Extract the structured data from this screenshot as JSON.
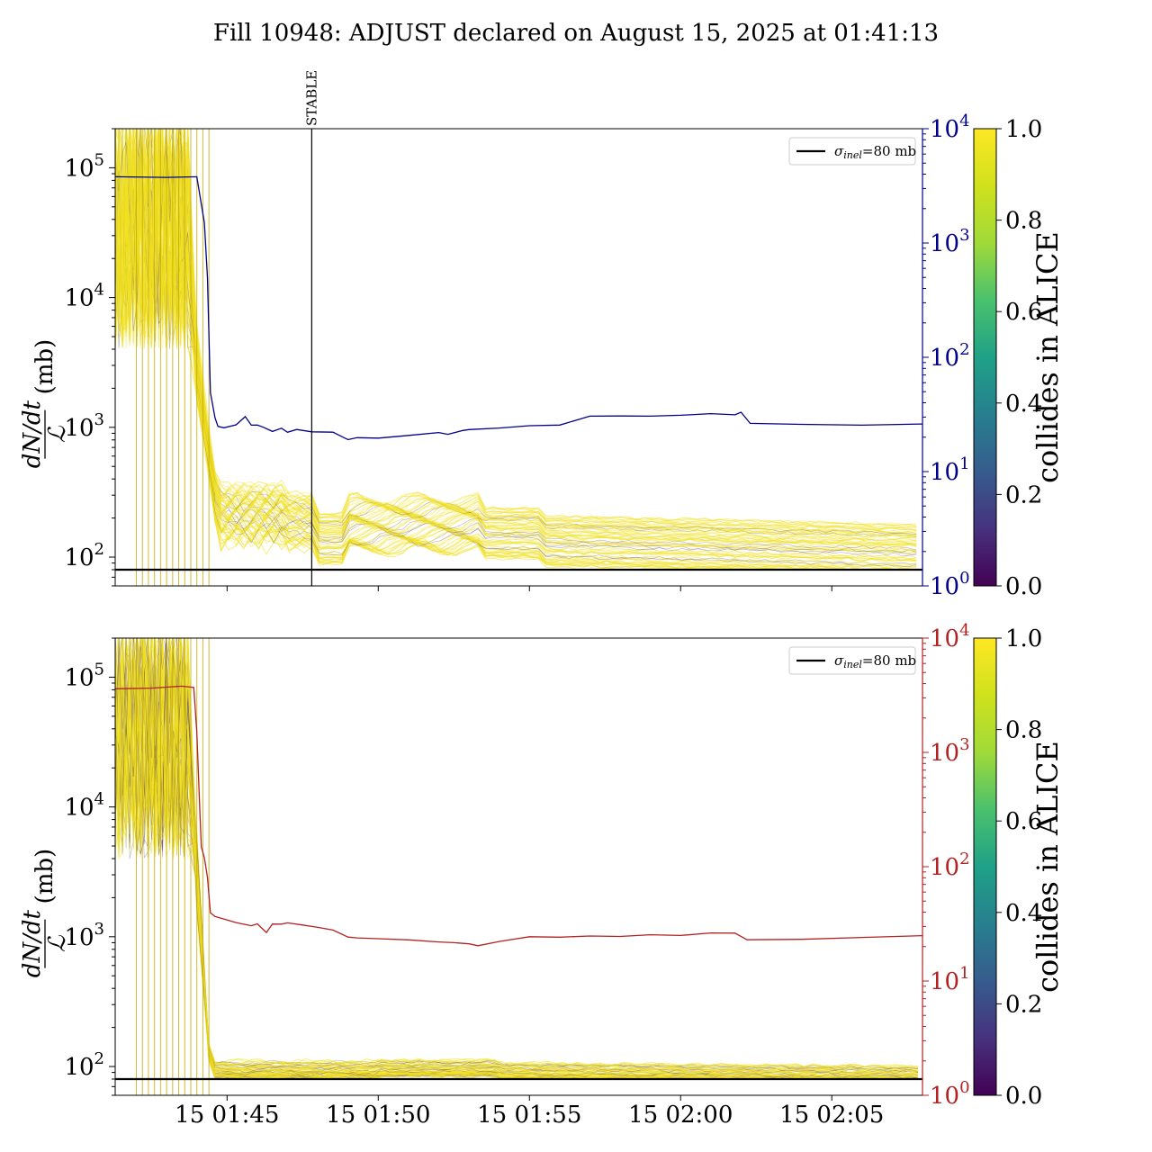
{
  "figure": {
    "title": "Fill 10948: ADJUST declared on August 15, 2025 at 01:41:13"
  },
  "colors": {
    "primary_secondary_line": "#00008b",
    "bottom_secondary_line": "#b22222",
    "reference_line": "#000000",
    "bunch_high": "#f0e020",
    "bunch_low": "#3b1f5e"
  },
  "chart_data": [
    {
      "type": "line",
      "panel": "top",
      "ylabel_numerator": "dN/dt",
      "ylabel_denominator": "ℒ",
      "ylabel_unit": "(mb)",
      "yscale": "log",
      "ylim": [
        60,
        200000
      ],
      "left_ticks": [
        {
          "base": "10",
          "exp": "2",
          "value": 100
        },
        {
          "base": "10",
          "exp": "3",
          "value": 1000
        },
        {
          "base": "10",
          "exp": "4",
          "value": 10000
        },
        {
          "base": "10",
          "exp": "5",
          "value": 100000
        }
      ],
      "right_yscale": "log",
      "right_ylim": [
        1,
        10000
      ],
      "right_ticks": [
        {
          "base": "10",
          "exp": "0",
          "value": 1
        },
        {
          "base": "10",
          "exp": "1",
          "value": 10
        },
        {
          "base": "10",
          "exp": "2",
          "value": 100
        },
        {
          "base": "10",
          "exp": "3",
          "value": 1000
        },
        {
          "base": "10",
          "exp": "4",
          "value": 10000
        }
      ],
      "right_axis_color": "#00008b",
      "xlim_min": [
        101.3,
        128
      ],
      "x_ticks_hidden": true,
      "reference_line": {
        "y": 80,
        "legend": {
          "sigma": "σ",
          "sub": "inel",
          "rest": "=80 mb"
        }
      },
      "annotation": {
        "label": "STABLE",
        "x_min": 107.8
      },
      "secondary_series": {
        "color": "#00008b",
        "x_min": [
          101.3,
          103.0,
          104.0,
          104.25,
          104.35,
          104.45,
          104.6,
          104.7,
          104.9,
          105.3,
          105.6,
          105.8,
          106.0,
          106.2,
          106.5,
          106.8,
          107.0,
          107.3,
          107.8,
          108.5,
          109.0,
          109.3,
          110.0,
          111.0,
          112.0,
          112.3,
          112.8,
          113.0,
          114.0,
          115.0,
          116.0,
          117.0,
          118.0,
          119.0,
          120.0,
          121.0,
          121.8,
          122.0,
          122.3,
          124.0,
          126.0,
          128.0
        ],
        "values": [
          3800,
          3750,
          3800,
          1500,
          500,
          50,
          30,
          25,
          24,
          26,
          30,
          25,
          26,
          24,
          22,
          24,
          22,
          23,
          22.5,
          22,
          19,
          19.5,
          20,
          21,
          22,
          21,
          22.5,
          23,
          24,
          25,
          26,
          30,
          31,
          31,
          31,
          32,
          32,
          33,
          26,
          26,
          26,
          26.5
        ]
      },
      "colorbar": {
        "label": "collides in ALICE",
        "min": 0.0,
        "max": 1.0,
        "ticks": [
          "0.0",
          "0.2",
          "0.4",
          "0.6",
          "0.8",
          "1.0"
        ]
      }
    },
    {
      "type": "line",
      "panel": "bottom",
      "ylabel_numerator": "dN/dt",
      "ylabel_denominator": "ℒ",
      "ylabel_unit": "(mb)",
      "yscale": "log",
      "ylim": [
        60,
        200000
      ],
      "left_ticks": [
        {
          "base": "10",
          "exp": "2",
          "value": 100
        },
        {
          "base": "10",
          "exp": "3",
          "value": 1000
        },
        {
          "base": "10",
          "exp": "4",
          "value": 10000
        },
        {
          "base": "10",
          "exp": "5",
          "value": 100000
        }
      ],
      "right_yscale": "log",
      "right_ylim": [
        1,
        10000
      ],
      "right_ticks": [
        {
          "base": "10",
          "exp": "0",
          "value": 1
        },
        {
          "base": "10",
          "exp": "1",
          "value": 10
        },
        {
          "base": "10",
          "exp": "2",
          "value": 100
        },
        {
          "base": "10",
          "exp": "3",
          "value": 1000
        },
        {
          "base": "10",
          "exp": "4",
          "value": 10000
        }
      ],
      "right_axis_color": "#b22222",
      "xlim_min": [
        101.3,
        128
      ],
      "x_ticks": [
        {
          "label": "15 01:45",
          "x_min": 105
        },
        {
          "label": "15 01:50",
          "x_min": 110
        },
        {
          "label": "15 01:55",
          "x_min": 115
        },
        {
          "label": "15 02:00",
          "x_min": 120
        },
        {
          "label": "15 02:05",
          "x_min": 125
        }
      ],
      "reference_line": {
        "y": 80,
        "legend": {
          "sigma": "σ",
          "sub": "inel",
          "rest": "=80 mb"
        }
      },
      "secondary_series": {
        "color": "#b22222",
        "x_min": [
          101.3,
          102.5,
          103.5,
          103.9,
          104.0,
          104.1,
          104.15,
          104.25,
          104.35,
          104.45,
          104.6,
          104.8,
          105.3,
          105.8,
          106.0,
          106.3,
          106.5,
          106.8,
          107.0,
          107.5,
          108.0,
          108.5,
          109.0,
          109.3,
          110.0,
          111.0,
          112.0,
          112.5,
          113.0,
          113.3,
          114.0,
          115.0,
          116.0,
          117.0,
          118.0,
          119.0,
          120.0,
          121.0,
          121.8,
          122.2,
          124.0,
          126.0,
          128.0
        ],
        "values": [
          3600,
          3650,
          3800,
          3700,
          1500,
          300,
          150,
          120,
          80,
          40,
          36,
          35,
          32,
          30,
          32,
          27,
          31,
          31,
          32,
          31,
          30,
          28,
          24,
          23.5,
          23,
          23,
          22,
          21.5,
          21,
          20,
          22,
          24,
          24,
          24.5,
          25,
          25,
          25.5,
          26,
          26,
          23,
          23.5,
          24,
          24.5
        ]
      },
      "colorbar": {
        "label": "collides in ALICE",
        "min": 0.0,
        "max": 1.0,
        "ticks": [
          "0.0",
          "0.2",
          "0.4",
          "0.6",
          "0.8",
          "1.0"
        ]
      }
    }
  ]
}
